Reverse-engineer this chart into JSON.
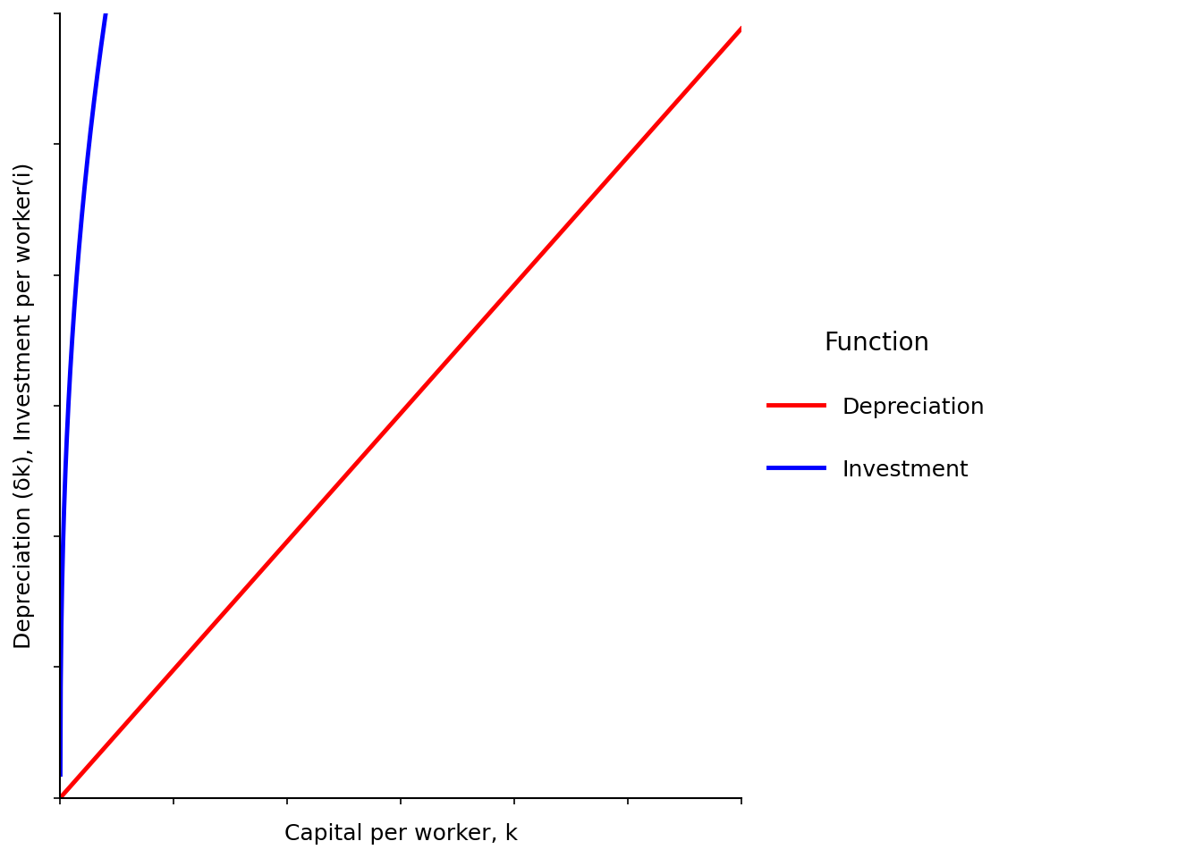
{
  "title": "",
  "xlabel": "Capital per worker, k",
  "ylabel": "Depreciation (δk), Investment per worker(i)",
  "depreciation_color": "#ff0000",
  "investment_color": "#0000ff",
  "dashed_color": "#000000",
  "background_color": "#ffffff",
  "legend_title": "Function",
  "legend_depreciation": "Depreciation",
  "legend_investment": "Investment",
  "delta": 0.05,
  "s": 0.6,
  "alpha": 0.4,
  "k_max": 10,
  "line_width": 3.5,
  "xlabel_fontsize": 18,
  "ylabel_fontsize": 18,
  "legend_fontsize": 18,
  "legend_title_fontsize": 20
}
